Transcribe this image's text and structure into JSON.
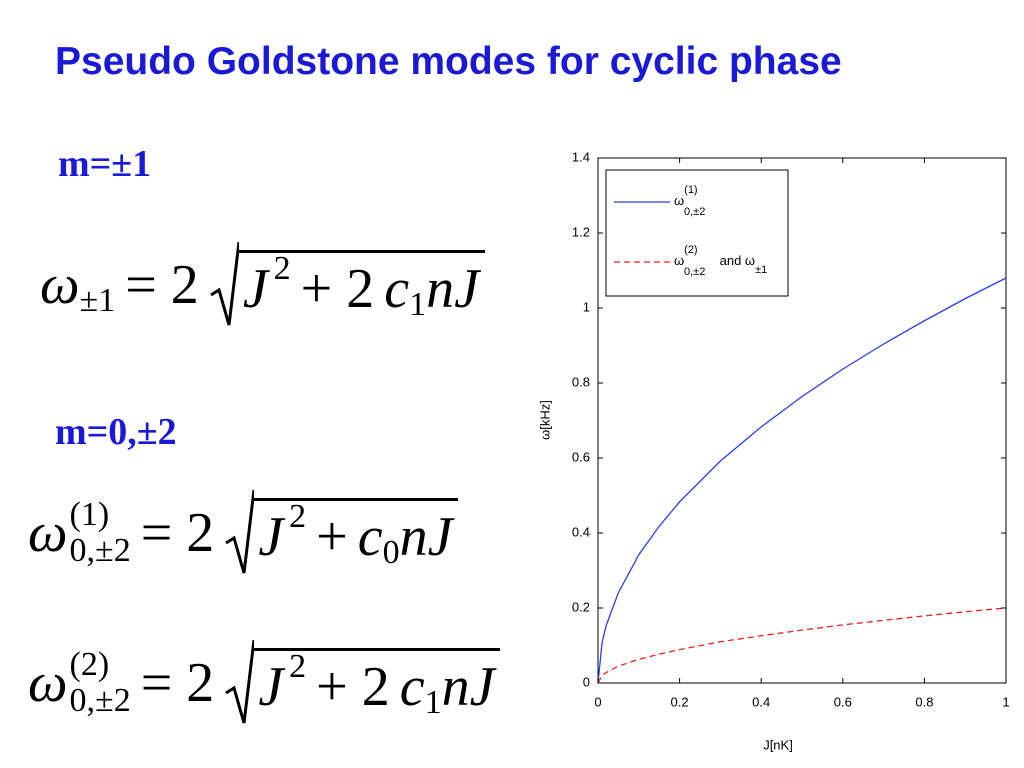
{
  "title": "Pseudo Goldstone modes for cyclic phase",
  "headings": [
    "m=±1",
    "m=0,±2"
  ],
  "equations": [
    [
      "ω",
      "±1",
      "= 2",
      "J",
      "2",
      "+ 2",
      "c",
      "1",
      "nJ"
    ],
    [
      "ω",
      "(1)",
      "0,±2",
      "= 2",
      "J",
      "2",
      "+",
      "c",
      "0",
      "nJ"
    ],
    [
      "ω",
      "(2)",
      "0,±2",
      "= 2",
      "J",
      "2",
      "+ 2",
      "c",
      "1",
      "nJ"
    ]
  ],
  "chart_data": {
    "type": "line",
    "xlabel": "J[nK]",
    "ylabel": "ω[kHz]",
    "x": [
      0,
      0.01,
      0.02,
      0.05,
      0.1,
      0.15,
      0.2,
      0.3,
      0.4,
      0.5,
      0.6,
      0.7,
      0.8,
      0.9,
      1.0
    ],
    "series": [
      {
        "name": [
          "ω",
          "(1)",
          "0,±2"
        ],
        "color": "#2b3fe0",
        "dash": false,
        "values": [
          0,
          0.108,
          0.153,
          0.241,
          0.342,
          0.418,
          0.483,
          0.592,
          0.683,
          0.764,
          0.837,
          0.904,
          0.966,
          1.025,
          1.08
        ]
      },
      {
        "name": [
          "ω",
          "(2)",
          "0,±2",
          " and ω",
          "±1"
        ],
        "color": "#ee2020",
        "dash": true,
        "values": [
          0,
          0.02,
          0.028,
          0.045,
          0.063,
          0.077,
          0.089,
          0.11,
          0.126,
          0.141,
          0.155,
          0.167,
          0.179,
          0.19,
          0.2
        ]
      }
    ],
    "xlim": [
      0,
      1
    ],
    "ylim": [
      0,
      1.4
    ],
    "xticks": [
      0,
      0.2,
      0.4,
      0.6,
      0.8,
      1
    ],
    "yticks": [
      0,
      0.2,
      0.4,
      0.6,
      0.8,
      1,
      1.2,
      1.4
    ],
    "grid": false,
    "legend": "upper left"
  }
}
